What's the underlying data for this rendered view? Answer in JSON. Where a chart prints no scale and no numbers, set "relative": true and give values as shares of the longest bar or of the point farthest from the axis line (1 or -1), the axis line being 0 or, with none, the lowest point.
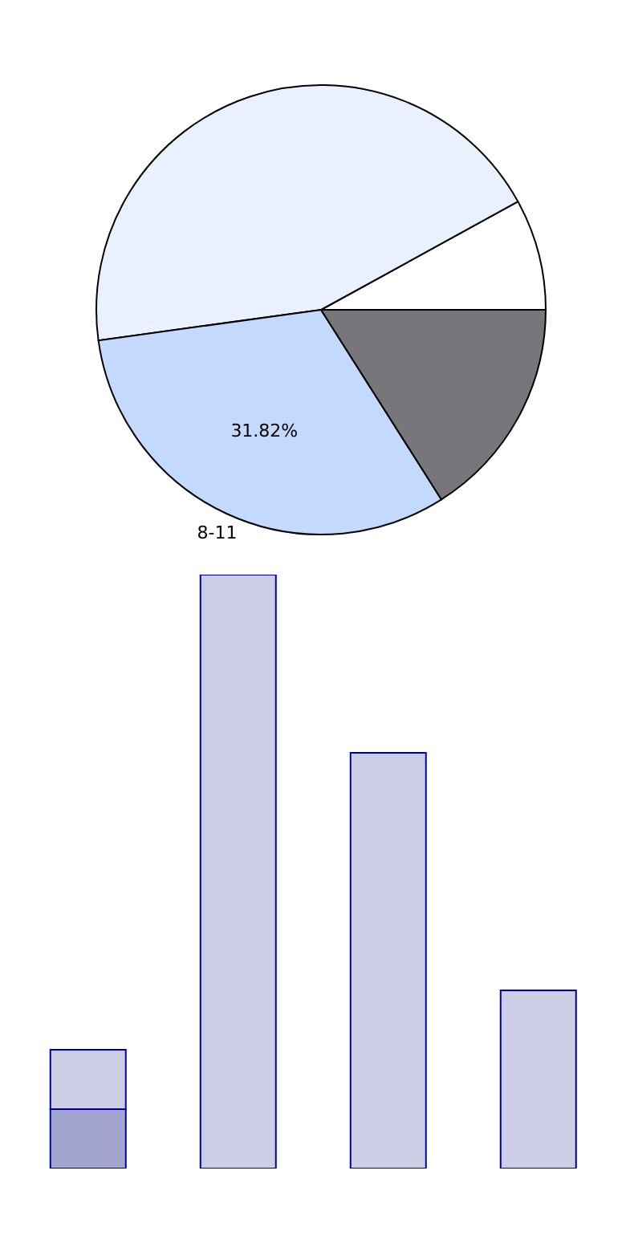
{
  "chart_data": [
    {
      "type": "pie",
      "categories": [
        null,
        null,
        "8-11",
        null
      ],
      "values": [
        8,
        44.18,
        31.82,
        16
      ],
      "value_labels": [
        null,
        null,
        "31.82%",
        null
      ],
      "colors": [
        "#ffffff",
        "#eaf1fe",
        "#c4d9fe",
        "#77777b"
      ]
    },
    {
      "type": "bar",
      "relative": true,
      "stacked": true,
      "categories": [
        null,
        null,
        null,
        null
      ],
      "series": [
        {
          "color": "#a3a5d0",
          "values": [
            0.1,
            0,
            0,
            0
          ]
        },
        {
          "color": "#cdcde5",
          "values": [
            0.1,
            1,
            0.7,
            0.3
          ]
        }
      ]
    }
  ]
}
